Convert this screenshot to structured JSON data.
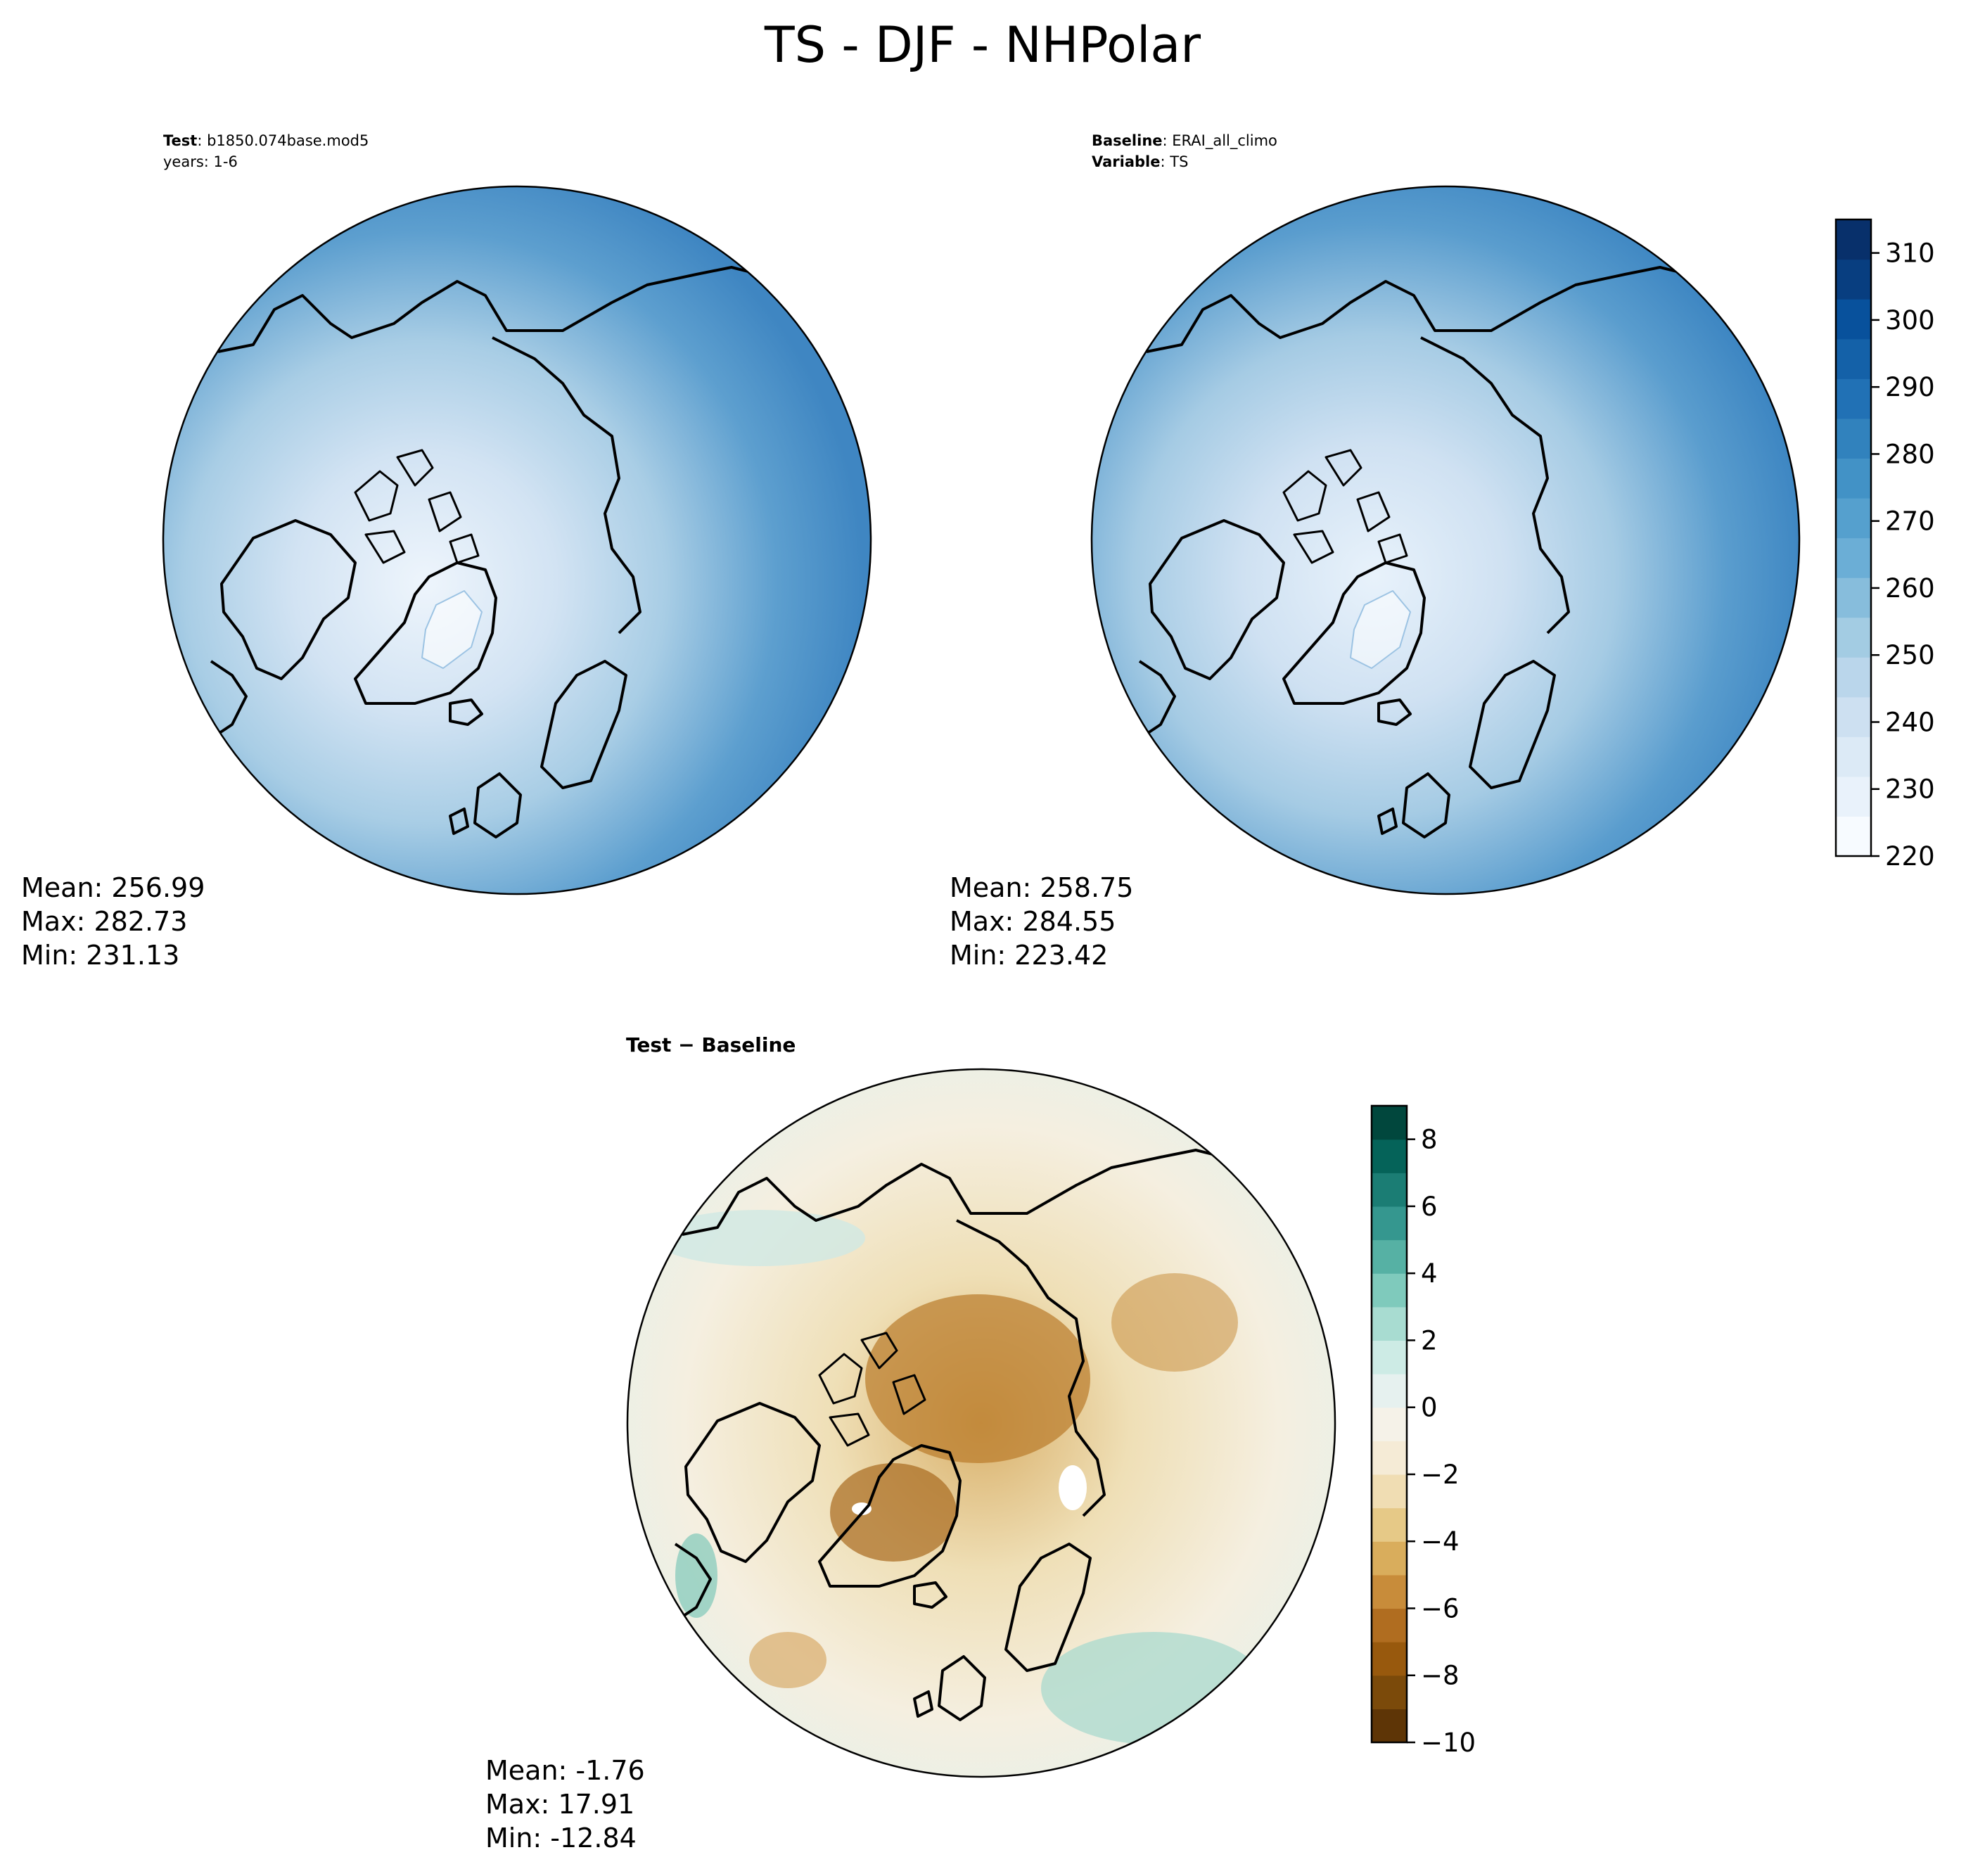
{
  "figure": {
    "title": "TS - DJF - NHPolar"
  },
  "panels": [
    {
      "id": "test",
      "meta": [
        {
          "key": "Test",
          "value": "b1850.074base.mod5"
        },
        {
          "key": "",
          "value": "years: 1-6"
        }
      ],
      "stats": [
        "Mean: 256.99",
        "Max: 282.73",
        "Min: 231.13"
      ]
    },
    {
      "id": "baseline",
      "meta": [
        {
          "key": "Baseline",
          "value": "ERAI_all_climo"
        },
        {
          "key": "Variable",
          "value": "TS"
        }
      ],
      "stats": [
        "Mean: 258.75",
        "Max: 284.55",
        "Min: 223.42"
      ]
    },
    {
      "id": "diff",
      "subtitle": "Test − Baseline",
      "stats": [
        "Mean: -1.76",
        "Max: 17.91",
        "Min: -12.84"
      ]
    }
  ],
  "colorbars": [
    {
      "id": "abs",
      "range": [
        220,
        315
      ],
      "ticks": [
        220,
        230,
        240,
        250,
        260,
        270,
        280,
        290,
        300,
        310
      ],
      "colors": [
        "#f7fbff",
        "#e9f2fb",
        "#dceaf6",
        "#cde0f1",
        "#bad6eb",
        "#a3cce3",
        "#87bddc",
        "#6baed6",
        "#55a0ce",
        "#4292c6",
        "#3182bd",
        "#2171b5",
        "#1461a8",
        "#08519c",
        "#083e80",
        "#08306b"
      ]
    },
    {
      "id": "diff",
      "range": [
        -10,
        9
      ],
      "ticks": [
        -10,
        -8,
        -6,
        -4,
        -2,
        0,
        2,
        4,
        6,
        8
      ],
      "tick_labels": [
        "−10",
        "−8",
        "−6",
        "−4",
        "−2",
        "0",
        "2",
        "4",
        "6",
        "8"
      ],
      "colors": [
        "#5e3506",
        "#7b4a0a",
        "#98590d",
        "#b06d20",
        "#c88c3a",
        "#d9ad5c",
        "#e6c987",
        "#f0ddb3",
        "#f5ebd6",
        "#f5f2e8",
        "#e6f1ef",
        "#cdebe5",
        "#a8dcd1",
        "#7fcabc",
        "#56b1a4",
        "#35978f",
        "#1b7d74",
        "#056359",
        "#01473d"
      ]
    }
  ]
}
